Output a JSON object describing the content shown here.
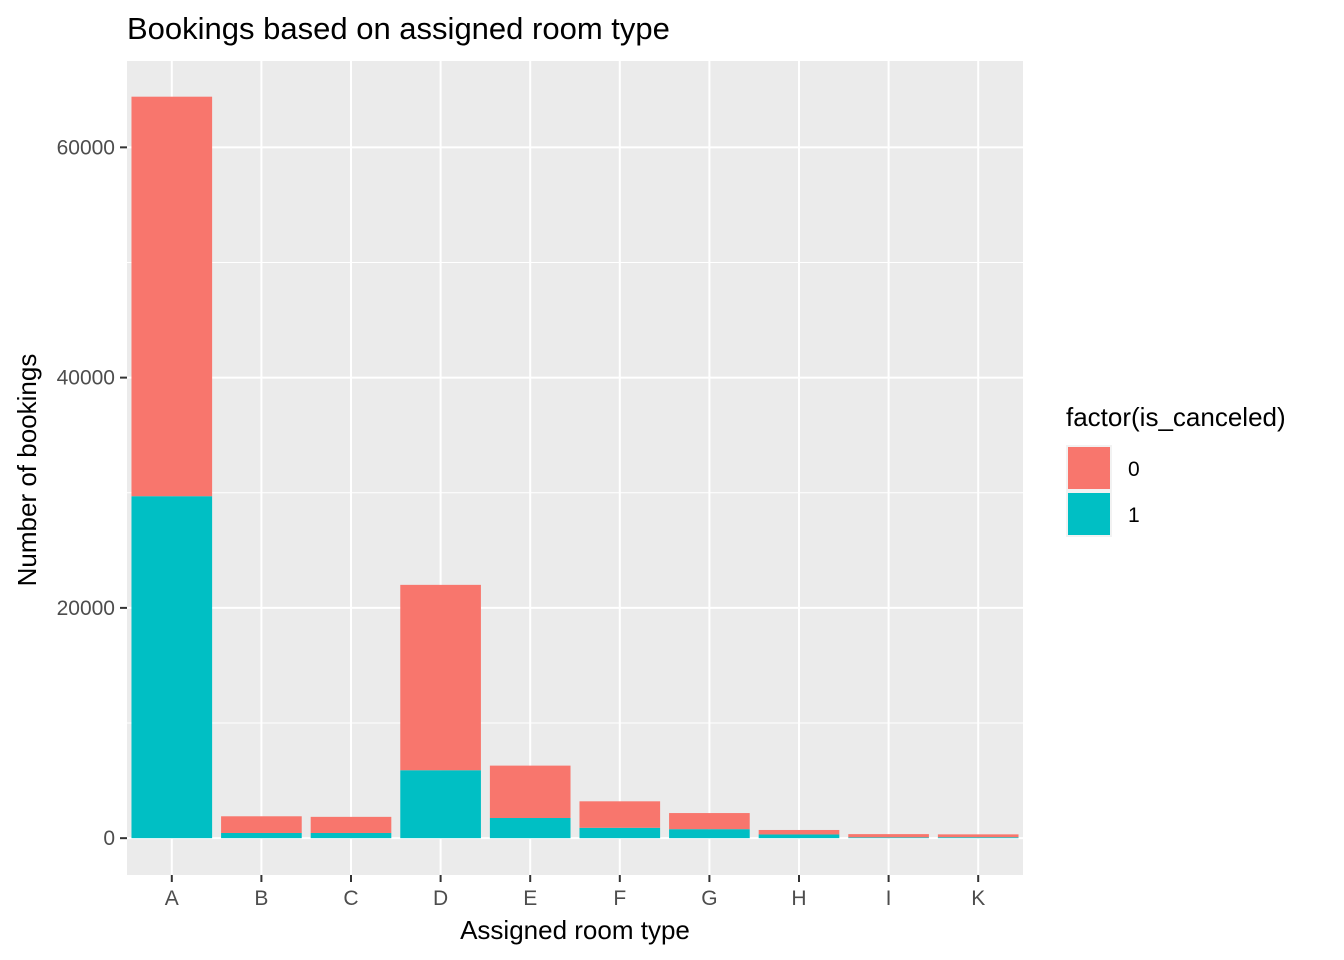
{
  "chart_data": {
    "type": "bar",
    "stacked": true,
    "title": "Bookings based on assigned room type",
    "xlabel": "Assigned room type",
    "ylabel": "Number of bookings",
    "categories": [
      "A",
      "B",
      "C",
      "D",
      "E",
      "F",
      "G",
      "H",
      "I",
      "K"
    ],
    "series": [
      {
        "name": "0",
        "color": "#F8766D",
        "values": [
          34700,
          1450,
          1400,
          16100,
          4550,
          2300,
          1400,
          390,
          280,
          250
        ]
      },
      {
        "name": "1",
        "color": "#00BFC4",
        "values": [
          29700,
          450,
          450,
          5900,
          1750,
          900,
          780,
          320,
          70,
          80
        ]
      }
    ],
    "ylim": [
      -3200,
      67500
    ],
    "yticks": [
      0,
      20000,
      40000,
      60000
    ],
    "yticklabels": [
      "0",
      "20000",
      "40000",
      "60000"
    ],
    "grid": true,
    "legend": {
      "title": "factor(is_canceled)",
      "placement": "right",
      "entries": [
        "0",
        "1"
      ]
    },
    "panel_background": "#EBEBEB",
    "grid_color": "#FFFFFF"
  }
}
